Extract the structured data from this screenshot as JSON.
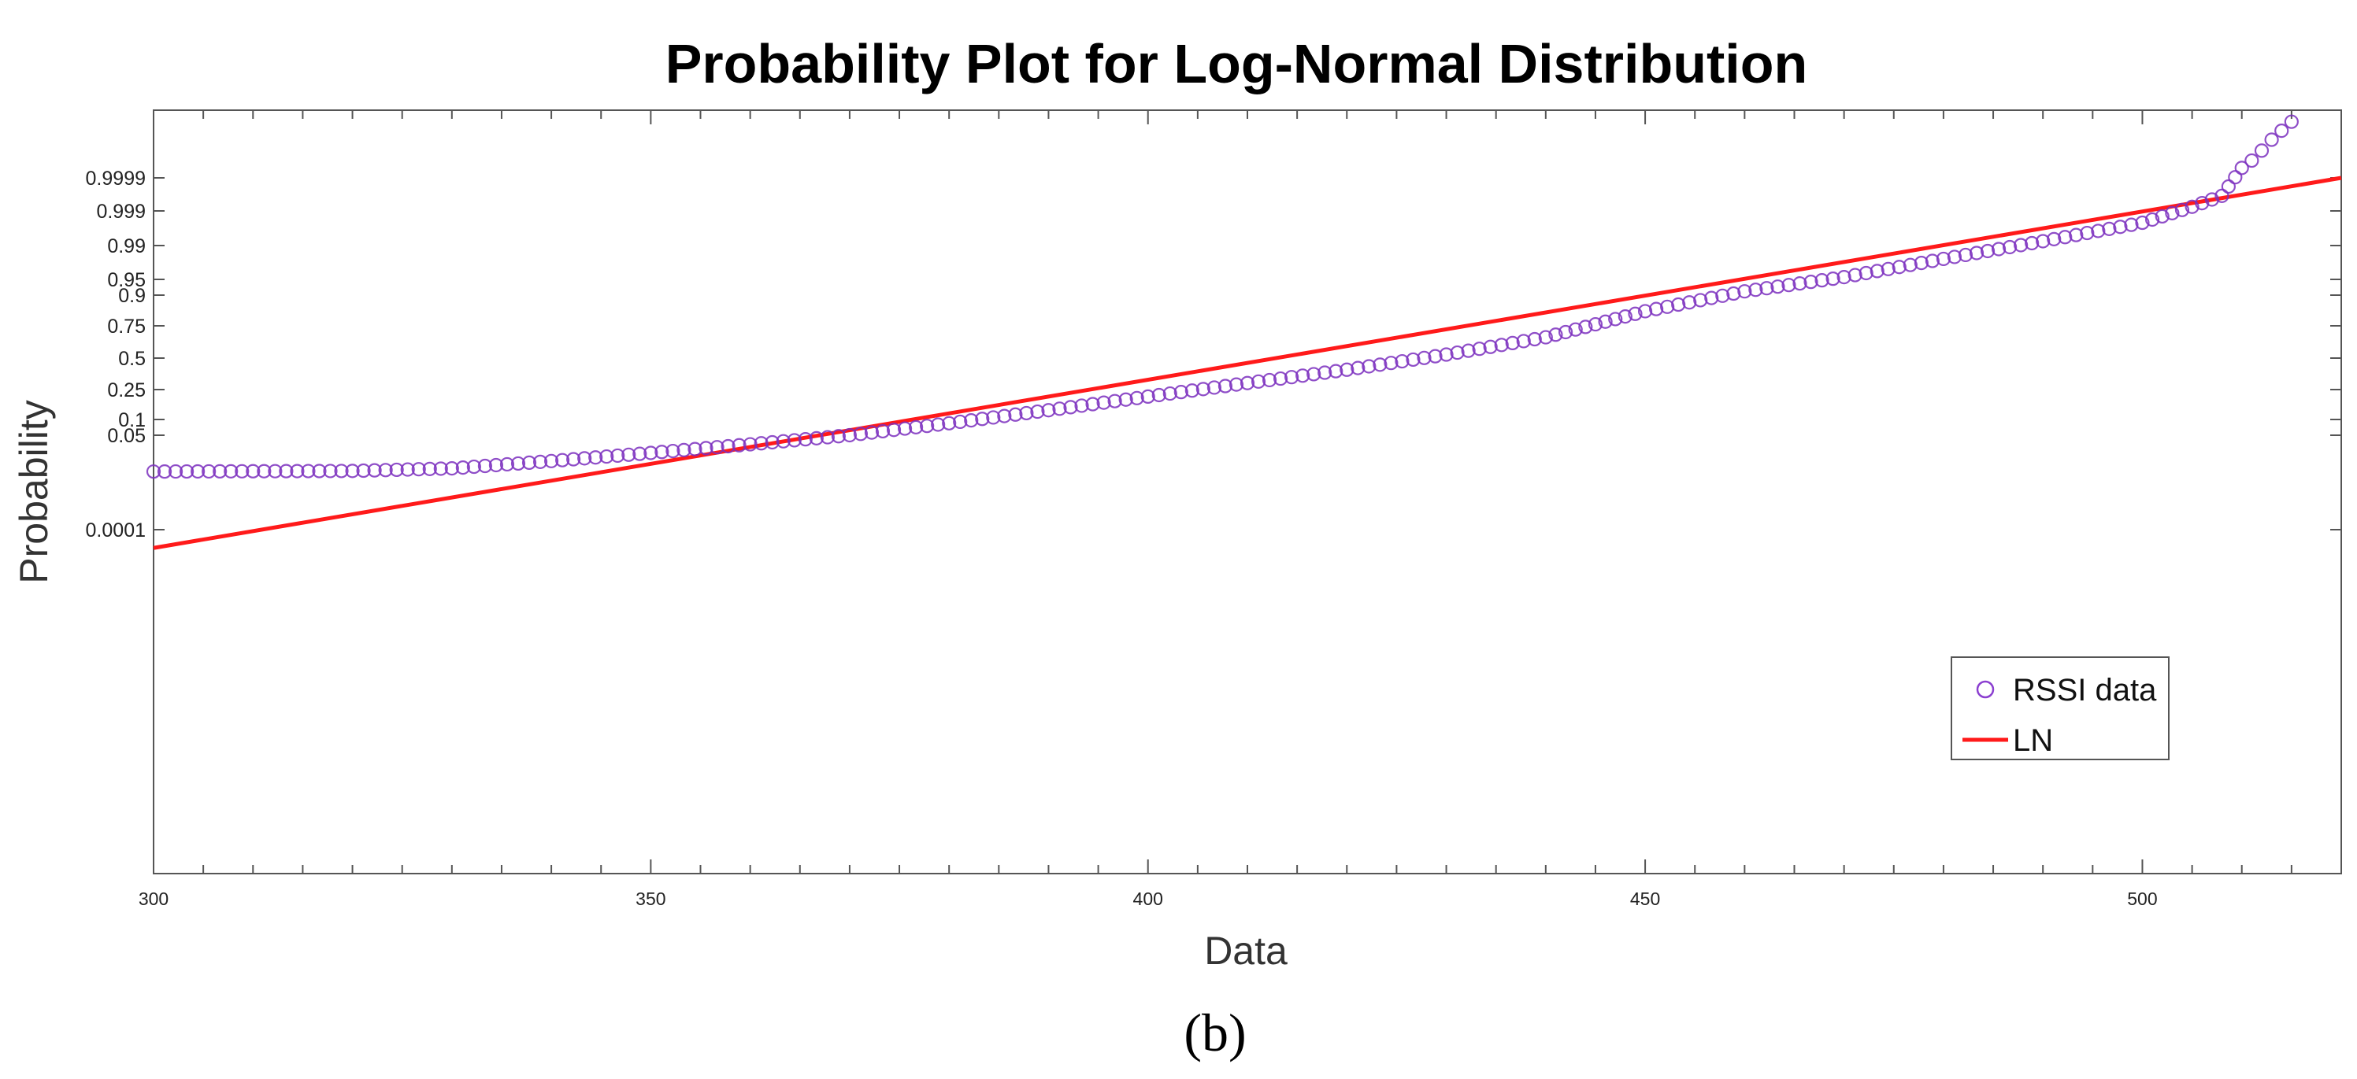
{
  "chart_data": {
    "type": "scatter",
    "title": "Probability Plot for Log-Normal Distribution",
    "xlabel": "Data",
    "ylabel": "Probability",
    "panel_label": "(b)",
    "xlim": [
      300,
      520
    ],
    "x_ticks": [
      300,
      350,
      400,
      450,
      500
    ],
    "y_ticks": [
      {
        "label": "0.9999",
        "p": 0.9999
      },
      {
        "label": "0.999",
        "p": 0.999
      },
      {
        "label": "0.99",
        "p": 0.99
      },
      {
        "label": "0.95",
        "p": 0.95
      },
      {
        "label": "0.9",
        "p": 0.9
      },
      {
        "label": "0.75",
        "p": 0.75
      },
      {
        "label": "0.5",
        "p": 0.5
      },
      {
        "label": "0.25",
        "p": 0.25
      },
      {
        "label": "0.1",
        "p": 0.1
      },
      {
        "label": "0.05",
        "p": 0.05
      },
      {
        "label": "0.0001",
        "p": 0.0001
      }
    ],
    "series": [
      {
        "name": "RSSI data",
        "kind": "scatter",
        "color": "#7B2FBE",
        "points": [
          [
            300,
            0.0047
          ],
          [
            320,
            0.0049
          ],
          [
            330,
            0.0058
          ],
          [
            340,
            0.0094
          ],
          [
            350,
            0.016
          ],
          [
            360,
            0.028
          ],
          [
            370,
            0.05
          ],
          [
            380,
            0.085
          ],
          [
            390,
            0.135
          ],
          [
            400,
            0.205
          ],
          [
            410,
            0.295
          ],
          [
            420,
            0.4
          ],
          [
            430,
            0.53
          ],
          [
            440,
            0.67
          ],
          [
            445,
            0.76
          ],
          [
            450,
            0.835
          ],
          [
            460,
            0.915
          ],
          [
            470,
            0.955
          ],
          [
            480,
            0.981
          ],
          [
            490,
            0.9925
          ],
          [
            500,
            0.9978
          ],
          [
            505,
            0.99925
          ],
          [
            508,
            0.99965
          ],
          [
            510,
            0.99995
          ],
          [
            511,
            0.99997
          ],
          [
            512,
            0.999985
          ],
          [
            513,
            0.999993
          ],
          [
            515,
            0.999998
          ]
        ]
      },
      {
        "name": "LN",
        "kind": "line",
        "color": "#FF1A1A",
        "points": [
          [
            300,
            3e-05
          ],
          [
            520,
            0.9999
          ]
        ]
      }
    ],
    "legend": {
      "position": "bottom-right",
      "entries": [
        "RSSI data",
        "LN"
      ]
    },
    "grid": false
  }
}
